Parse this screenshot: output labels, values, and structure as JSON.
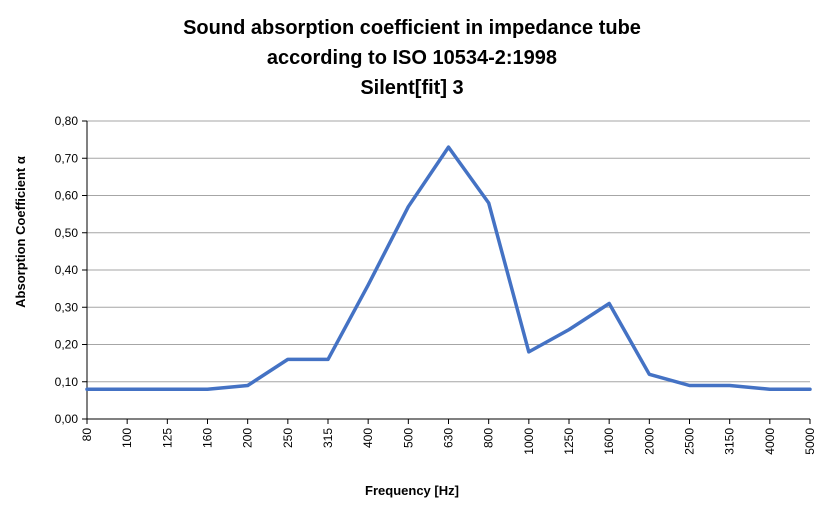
{
  "colors": {
    "series": "#4472C4",
    "grid": "#A6A6A6",
    "axis": "#000000"
  },
  "chart_data": {
    "type": "line",
    "title": [
      "Sound absorption coefficient in impedance tube",
      "according to ISO 10534-2:1998",
      "Silent[fit] 3"
    ],
    "xlabel": "Frequency [Hz]",
    "ylabel": "Absorption Coefficient α",
    "categories": [
      "80",
      "100",
      "125",
      "160",
      "200",
      "250",
      "315",
      "400",
      "500",
      "630",
      "800",
      "1000",
      "1250",
      "1600",
      "2000",
      "2500",
      "3150",
      "4000",
      "5000"
    ],
    "series": [
      {
        "values": [
          0.08,
          0.08,
          0.08,
          0.08,
          0.09,
          0.16,
          0.16,
          0.36,
          0.57,
          0.73,
          0.58,
          0.18,
          0.24,
          0.31,
          0.12,
          0.09,
          0.09,
          0.08,
          0.08
        ]
      }
    ],
    "ylim": [
      0,
      0.8
    ],
    "yticks": [
      "0,00",
      "0,10",
      "0,20",
      "0,30",
      "0,40",
      "0,50",
      "0,60",
      "0,70",
      "0,80"
    ],
    "grid": true,
    "legend": "none"
  }
}
